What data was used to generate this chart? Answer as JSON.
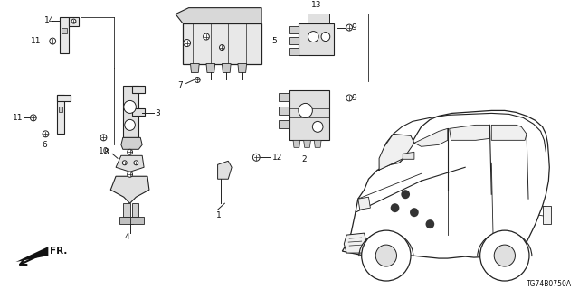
{
  "diagram_code": "TG74B0750A",
  "background_color": "#ffffff",
  "lc": "#222222",
  "tc": "#111111",
  "fig_w": 6.4,
  "fig_h": 3.2,
  "dpi": 100
}
